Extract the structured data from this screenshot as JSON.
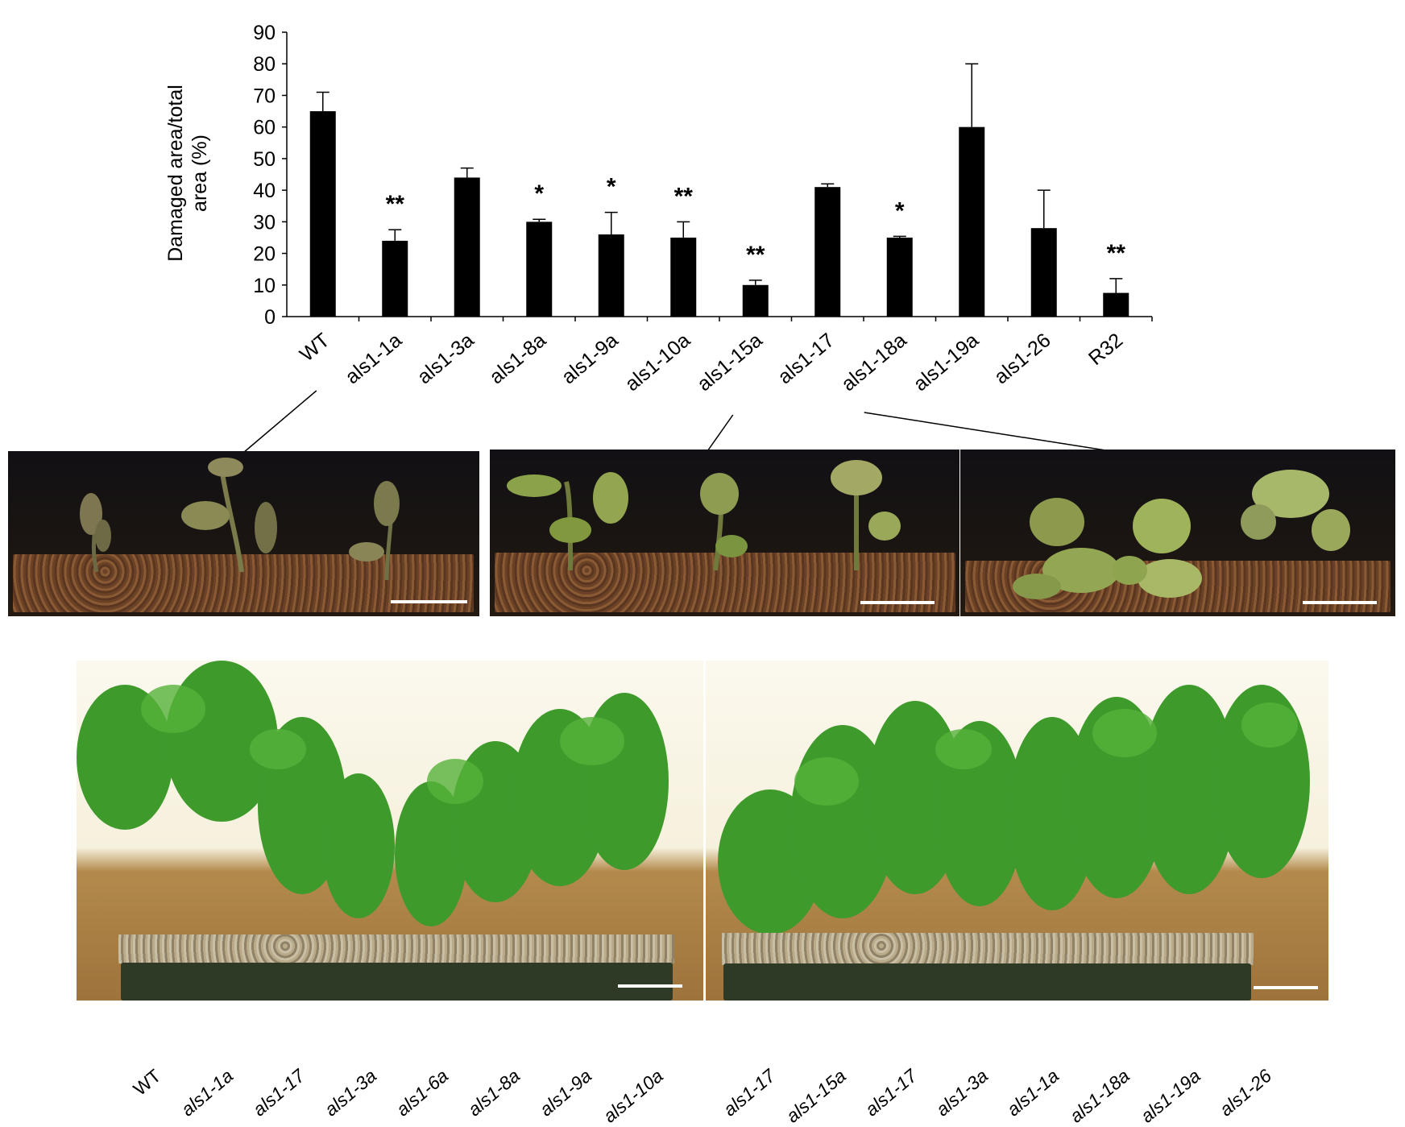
{
  "chart_data": {
    "type": "bar",
    "ylabel": "Damaged area/total area (%)",
    "ylim": [
      0,
      90
    ],
    "yticks": [
      "0",
      "10",
      "20",
      "30",
      "40",
      "50",
      "60",
      "70",
      "80",
      "90"
    ],
    "categories": [
      "WT",
      "als1-1a",
      "als1-3a",
      "als1-8a",
      "als1-9a",
      "als1-10a",
      "als1-15a",
      "als1-17",
      "als1-18a",
      "als1-19a",
      "als1-26",
      "R32"
    ],
    "values": [
      65,
      24,
      44,
      30,
      26,
      25,
      10,
      41,
      25,
      60,
      28,
      7.5
    ],
    "errors": [
      6,
      3.5,
      3,
      0.8,
      7,
      5,
      1.5,
      1,
      0.4,
      20,
      12,
      4.5
    ],
    "significance": [
      "",
      "**",
      "",
      "*",
      "*",
      "**",
      "**",
      "",
      "*",
      "",
      "",
      "**"
    ],
    "colors": {
      "bar": "#000000"
    }
  },
  "bottom_left_labels": [
    "WT",
    "als1-1a",
    "als1-17",
    "als1-3a",
    "als1-6a",
    "als1-8a",
    "als1-9a",
    "als1-10a"
  ],
  "bottom_right_labels": [
    "als1-17",
    "als1-15a",
    "als1-17",
    "als1-3a",
    "als1-1a",
    "als1-18a",
    "als1-19a",
    "als1-26"
  ]
}
